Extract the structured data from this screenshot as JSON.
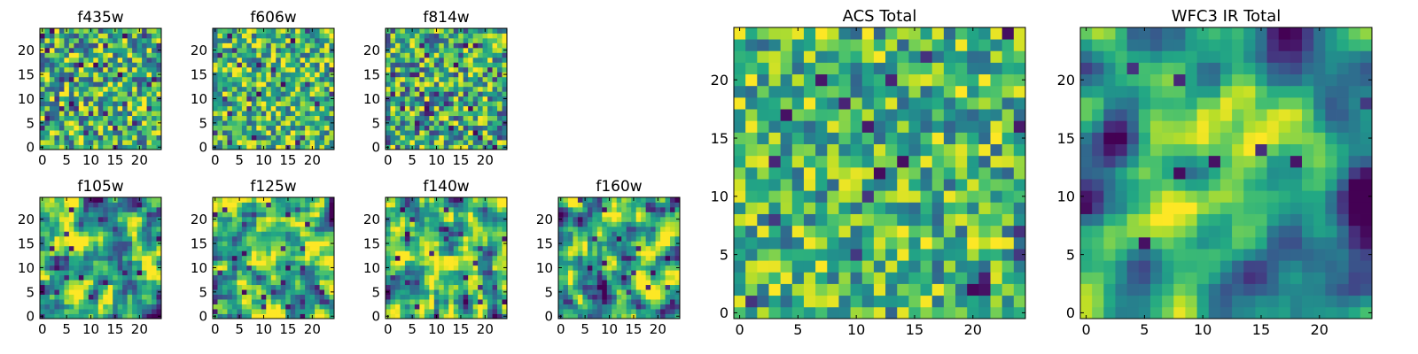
{
  "figure": {
    "colormap": "viridis",
    "background": "#ffffff",
    "frame_color": "#000000"
  },
  "chart_data": [
    {
      "type": "heatmap",
      "title": "f435w",
      "grid": [
        25,
        25
      ],
      "xlim": [
        0,
        24
      ],
      "ylim": [
        0,
        24
      ],
      "xticks": [
        "0",
        "5",
        "10",
        "15",
        "20"
      ],
      "yticks": [
        "0",
        "5",
        "10",
        "15",
        "20"
      ],
      "texture": {
        "seed": 11,
        "smooth": 0,
        "mean": 0.62,
        "spread": 0.24,
        "dark_spots": 0.05
      }
    },
    {
      "type": "heatmap",
      "title": "f606w",
      "grid": [
        25,
        25
      ],
      "xlim": [
        0,
        24
      ],
      "ylim": [
        0,
        24
      ],
      "xticks": [
        "0",
        "5",
        "10",
        "15",
        "20"
      ],
      "yticks": [
        "0",
        "5",
        "10",
        "15",
        "20"
      ],
      "texture": {
        "seed": 23,
        "smooth": 0,
        "mean": 0.66,
        "spread": 0.22,
        "dark_spots": 0.04
      }
    },
    {
      "type": "heatmap",
      "title": "f814w",
      "grid": [
        25,
        25
      ],
      "xlim": [
        0,
        24
      ],
      "ylim": [
        0,
        24
      ],
      "xticks": [
        "0",
        "5",
        "10",
        "15",
        "20"
      ],
      "yticks": [
        "0",
        "5",
        "10",
        "15",
        "20"
      ],
      "texture": {
        "seed": 37,
        "smooth": 0,
        "mean": 0.62,
        "spread": 0.24,
        "dark_spots": 0.05
      }
    },
    {
      "type": "heatmap",
      "title": "f105w",
      "grid": [
        25,
        25
      ],
      "xlim": [
        0,
        24
      ],
      "ylim": [
        0,
        24
      ],
      "xticks": [
        "0",
        "5",
        "10",
        "15",
        "20"
      ],
      "yticks": [
        "0",
        "5",
        "10",
        "15",
        "20"
      ],
      "texture": {
        "seed": 41,
        "smooth": 1,
        "mean": 0.6,
        "spread": 0.26,
        "dark_spots": 0.03
      }
    },
    {
      "type": "heatmap",
      "title": "f125w",
      "grid": [
        25,
        25
      ],
      "xlim": [
        0,
        24
      ],
      "ylim": [
        0,
        24
      ],
      "xticks": [
        "0",
        "5",
        "10",
        "15",
        "20"
      ],
      "yticks": [
        "0",
        "5",
        "10",
        "15",
        "20"
      ],
      "texture": {
        "seed": 53,
        "smooth": 1,
        "mean": 0.66,
        "spread": 0.24,
        "dark_spots": 0.03
      }
    },
    {
      "type": "heatmap",
      "title": "f140w",
      "grid": [
        25,
        25
      ],
      "xlim": [
        0,
        24
      ],
      "ylim": [
        0,
        24
      ],
      "xticks": [
        "0",
        "5",
        "10",
        "15",
        "20"
      ],
      "yticks": [
        "0",
        "5",
        "10",
        "15",
        "20"
      ],
      "texture": {
        "seed": 67,
        "smooth": 1,
        "mean": 0.66,
        "spread": 0.24,
        "dark_spots": 0.03
      }
    },
    {
      "type": "heatmap",
      "title": "f160w",
      "grid": [
        25,
        25
      ],
      "xlim": [
        0,
        24
      ],
      "ylim": [
        0,
        24
      ],
      "xticks": [
        "0",
        "5",
        "10",
        "15",
        "20"
      ],
      "yticks": [
        "0",
        "5",
        "10",
        "15",
        "20"
      ],
      "texture": {
        "seed": 79,
        "smooth": 1,
        "mean": 0.6,
        "spread": 0.26,
        "dark_spots": 0.03
      }
    },
    {
      "type": "heatmap",
      "title": "ACS Total",
      "grid": [
        25,
        25
      ],
      "xlim": [
        0,
        24
      ],
      "ylim": [
        0,
        24
      ],
      "xticks": [
        "0",
        "5",
        "10",
        "15",
        "20"
      ],
      "yticks": [
        "0",
        "5",
        "10",
        "15",
        "20"
      ],
      "texture": {
        "seed": 97,
        "smooth": 0,
        "mean": 0.66,
        "spread": 0.2,
        "dark_spots": 0.035
      }
    },
    {
      "type": "heatmap",
      "title": "WFC3 IR Total",
      "grid": [
        25,
        25
      ],
      "xlim": [
        0,
        24
      ],
      "ylim": [
        0,
        24
      ],
      "xticks": [
        "0",
        "5",
        "10",
        "15",
        "20"
      ],
      "yticks": [
        "0",
        "5",
        "10",
        "15",
        "20"
      ],
      "texture": {
        "seed": 113,
        "smooth": 2,
        "mean": 0.58,
        "spread": 0.2,
        "dark_spots": 0.02,
        "peak": {
          "x": 12,
          "y": 12,
          "sigma": 4,
          "amplitude": 0.38
        }
      }
    }
  ]
}
